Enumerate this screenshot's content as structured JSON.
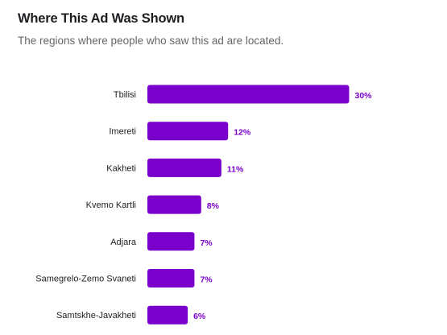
{
  "header": {
    "title": "Where This Ad Was Shown",
    "subtitle": "The regions where people who saw this ad are located."
  },
  "colors": {
    "bar": "#7A00CC",
    "label": "#7A00CC"
  },
  "chart_data": {
    "type": "bar",
    "orientation": "horizontal",
    "categories": [
      "Tbilisi",
      "Imereti",
      "Kakheti",
      "Kvemo Kartli",
      "Adjara",
      "Samegrelo-Zemo Svaneti",
      "Samtskhe-Javakheti"
    ],
    "values": [
      30,
      12,
      11,
      8,
      7,
      7,
      6
    ],
    "value_labels": [
      "30%",
      "12%",
      "11%",
      "8%",
      "7%",
      "7%",
      "6%"
    ],
    "unit": "%",
    "grid": false,
    "legend": "none"
  }
}
